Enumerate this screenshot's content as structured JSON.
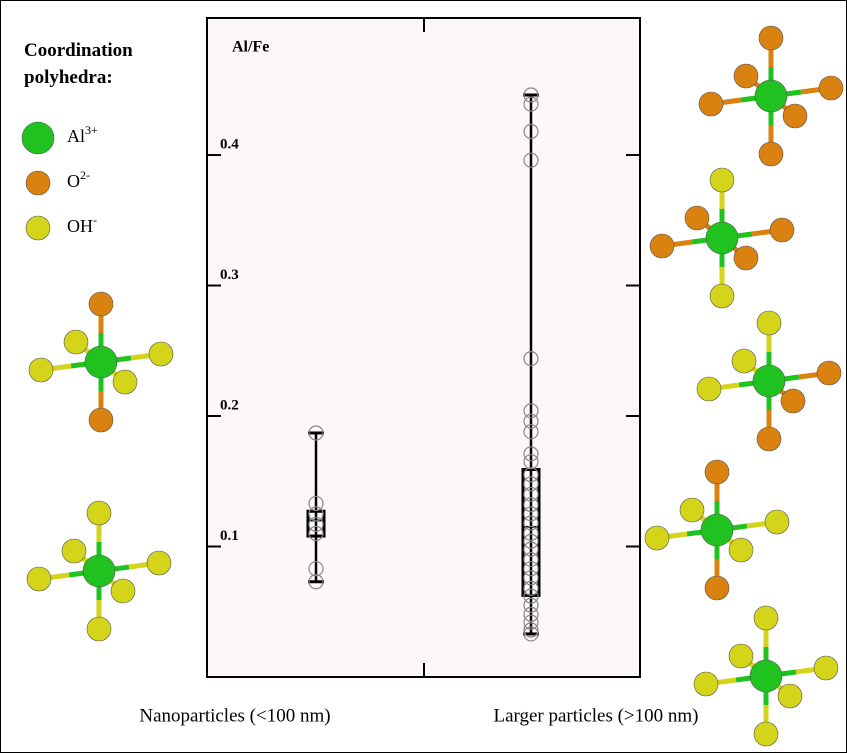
{
  "chart_data": {
    "type": "box",
    "y_label": "Al/Fe",
    "ylim": [
      0,
      0.505
    ],
    "yticks": [
      0.1,
      0.2,
      0.3,
      0.4
    ],
    "categories": [
      "Nanoparticles (<100 nm)",
      "Larger particles (>100 nm)"
    ],
    "series": [
      {
        "whisker_low": 0.073,
        "q1": 0.108,
        "median": 0.12,
        "q3": 0.127,
        "whisker_high": 0.187,
        "points": [
          0.187,
          0.133,
          0.125,
          0.117,
          0.11,
          0.083,
          0.073
        ]
      },
      {
        "whisker_low": 0.033,
        "q1": 0.0625,
        "median": 0.115,
        "q3": 0.159,
        "whisker_high": 0.446,
        "points": [
          0.446,
          0.439,
          0.418,
          0.396,
          0.244,
          0.204,
          0.196,
          0.188,
          0.171,
          0.165,
          0.155,
          0.148,
          0.14,
          0.132,
          0.125,
          0.118,
          0.11,
          0.104,
          0.098,
          0.09,
          0.083,
          0.076,
          0.068,
          0.062,
          0.055,
          0.048,
          0.042,
          0.036,
          0.033
        ]
      }
    ],
    "legend": {
      "title": "Coordination polyhedra:",
      "items": [
        {
          "base": "Al",
          "sup": "3+",
          "color": "#1fc21f"
        },
        {
          "base": "O",
          "sup": "2-",
          "color": "#d9820f"
        },
        {
          "base": "OH",
          "sup": "-",
          "color": "#d4d41a"
        }
      ]
    }
  }
}
